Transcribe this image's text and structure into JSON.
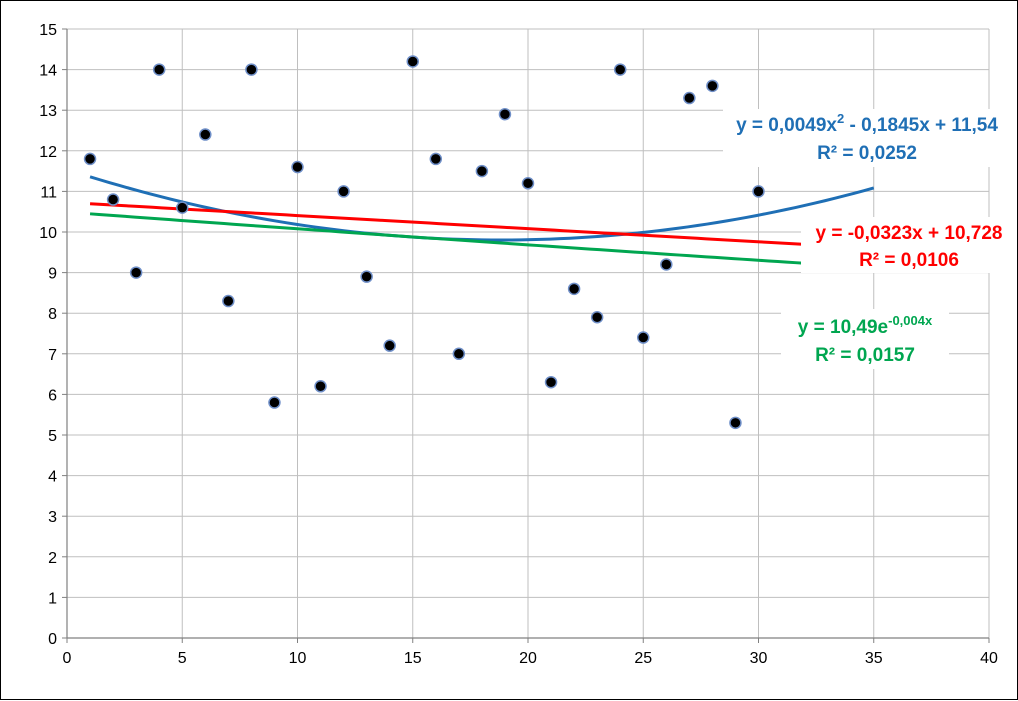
{
  "chart_data": {
    "type": "scatter",
    "xlim": [
      0,
      40
    ],
    "ylim": [
      0,
      15
    ],
    "x_ticks": [
      0,
      5,
      10,
      15,
      20,
      25,
      30,
      35,
      40
    ],
    "y_ticks": [
      0,
      1,
      2,
      3,
      4,
      5,
      6,
      7,
      8,
      9,
      10,
      11,
      12,
      13,
      14,
      15
    ],
    "grid": true,
    "legend": "none",
    "point_color": "#000000",
    "points": [
      {
        "x": 1,
        "y": 11.8
      },
      {
        "x": 2,
        "y": 10.8
      },
      {
        "x": 3,
        "y": 9.0
      },
      {
        "x": 4,
        "y": 14.0
      },
      {
        "x": 5,
        "y": 10.6
      },
      {
        "x": 6,
        "y": 12.4
      },
      {
        "x": 7,
        "y": 8.3
      },
      {
        "x": 8,
        "y": 14.0
      },
      {
        "x": 9,
        "y": 5.8
      },
      {
        "x": 10,
        "y": 11.6
      },
      {
        "x": 11,
        "y": 6.2
      },
      {
        "x": 12,
        "y": 11.0
      },
      {
        "x": 13,
        "y": 8.9
      },
      {
        "x": 14,
        "y": 7.2
      },
      {
        "x": 15,
        "y": 14.2
      },
      {
        "x": 16,
        "y": 11.8
      },
      {
        "x": 17,
        "y": 7.0
      },
      {
        "x": 18,
        "y": 11.5
      },
      {
        "x": 19,
        "y": 12.9
      },
      {
        "x": 20,
        "y": 11.2
      },
      {
        "x": 21,
        "y": 6.3
      },
      {
        "x": 22,
        "y": 8.6
      },
      {
        "x": 23,
        "y": 7.9
      },
      {
        "x": 24,
        "y": 14.0
      },
      {
        "x": 25,
        "y": 7.4
      },
      {
        "x": 26,
        "y": 9.2
      },
      {
        "x": 27,
        "y": 13.3
      },
      {
        "x": 28,
        "y": 13.6
      },
      {
        "x": 29,
        "y": 5.3
      },
      {
        "x": 30,
        "y": 11.0
      }
    ],
    "trendlines": [
      {
        "kind": "polynomial",
        "color": "#1f6fb5",
        "coefficients": [
          11.54,
          -0.1845,
          0.0049
        ],
        "x_range": [
          1,
          35
        ],
        "equation_parts": [
          "y = 0,0049x",
          "2",
          " - 0,1845x + 11,54"
        ],
        "r2_label": "R² = 0,0252"
      },
      {
        "kind": "linear",
        "color": "#ff0000",
        "coefficients": [
          10.728,
          -0.0323
        ],
        "x_range": [
          1,
          32
        ],
        "equation_parts": [
          "y = -0,0323x + 10,728"
        ],
        "r2_label": "R² = 0,0106"
      },
      {
        "kind": "exponential",
        "color": "#00a650",
        "coefficients": [
          10.49,
          -0.004
        ],
        "x_range": [
          1,
          32
        ],
        "equation_parts": [
          "y = 10,49e",
          "-0,004x"
        ],
        "r2_label": "R² = 0,0157"
      }
    ]
  }
}
